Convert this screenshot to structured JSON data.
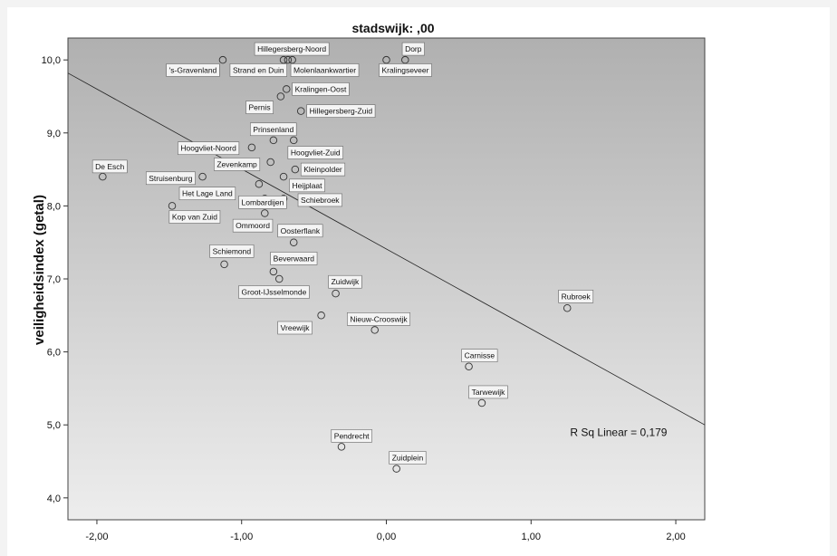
{
  "chart_data": {
    "type": "scatter",
    "title": "stadswijk: ,00",
    "xlabel": "",
    "ylabel": "veiligheidsindex (getal)",
    "xlim": [
      -2.2,
      2.2
    ],
    "ylim": [
      3.7,
      10.3
    ],
    "x_ticks": [
      "-2,00",
      "-1,00",
      "0,00",
      "1,00",
      "2,00"
    ],
    "x_tick_values": [
      -2,
      -1,
      0,
      1,
      2
    ],
    "y_ticks": [
      "4,0",
      "5,0",
      "6,0",
      "7,0",
      "8,0",
      "9,0",
      "10,0"
    ],
    "y_tick_values": [
      4,
      5,
      6,
      7,
      8,
      9,
      10
    ],
    "fit_line": {
      "x": [
        -2.2,
        2.2
      ],
      "y": [
        9.82,
        5.0
      ]
    },
    "annotation": "R Sq Linear = 0,179",
    "points": [
      {
        "label": "Hillegersberg-Noord",
        "x": -0.68,
        "y": 10.0,
        "lx": -0.91,
        "ly": 10.15
      },
      {
        "label": "Dorp",
        "x": 0.13,
        "y": 10.0,
        "lx": 0.11,
        "ly": 10.15
      },
      {
        "label": "'s-Gravenland",
        "x": -1.13,
        "y": 10.0,
        "lx": -1.52,
        "ly": 9.86
      },
      {
        "label": "Strand en Duin",
        "x": -0.71,
        "y": 10.0,
        "lx": -1.08,
        "ly": 9.86
      },
      {
        "label": "Molenlaankwartier",
        "x": -0.65,
        "y": 10.0,
        "lx": -0.66,
        "ly": 9.86
      },
      {
        "label": "Kralingseveer",
        "x": 0.0,
        "y": 10.0,
        "lx": -0.05,
        "ly": 9.86
      },
      {
        "label": "Kralingen-Oost",
        "x": -0.69,
        "y": 9.6,
        "lx": -0.65,
        "ly": 9.6
      },
      {
        "label": "Pernis",
        "x": -0.73,
        "y": 9.5,
        "lx": -0.97,
        "ly": 9.35
      },
      {
        "label": "Hillegersberg-Zuid",
        "x": -0.59,
        "y": 9.3,
        "lx": -0.55,
        "ly": 9.3
      },
      {
        "label": "Prinsenland",
        "x": -0.78,
        "y": 8.9,
        "lx": -0.94,
        "ly": 9.05
      },
      {
        "label": "Hoogvliet-Noord",
        "x": -0.93,
        "y": 8.8,
        "lx": -1.44,
        "ly": 8.79
      },
      {
        "label": "Hoogvliet-Zuid",
        "x": -0.64,
        "y": 8.9,
        "lx": -0.68,
        "ly": 8.73
      },
      {
        "label": "De Esch",
        "x": -1.96,
        "y": 8.4,
        "lx": -2.03,
        "ly": 8.54
      },
      {
        "label": "Zevenkamp",
        "x": -0.8,
        "y": 8.6,
        "lx": -1.19,
        "ly": 8.57
      },
      {
        "label": "Kleinpolder",
        "x": -0.63,
        "y": 8.5,
        "lx": -0.59,
        "ly": 8.5
      },
      {
        "label": "Struisenburg",
        "x": -1.27,
        "y": 8.4,
        "lx": -1.66,
        "ly": 8.38
      },
      {
        "label": "Heijplaat",
        "x": -0.71,
        "y": 8.4,
        "lx": -0.67,
        "ly": 8.28
      },
      {
        "label": "Het Lage Land",
        "x": -0.88,
        "y": 8.3,
        "lx": -1.43,
        "ly": 8.17
      },
      {
        "label": "Lombardijen",
        "x": -0.84,
        "y": 8.1,
        "lx": -1.02,
        "ly": 8.05
      },
      {
        "label": "Schiebroek",
        "x": -0.71,
        "y": 8.1,
        "lx": -0.61,
        "ly": 8.08
      },
      {
        "label": "Kop van Zuid",
        "x": -1.48,
        "y": 8.0,
        "lx": -1.5,
        "ly": 7.85
      },
      {
        "label": "Ommoord",
        "x": -0.84,
        "y": 7.9,
        "lx": -1.06,
        "ly": 7.73
      },
      {
        "label": "Oosterflank",
        "x": -0.64,
        "y": 7.5,
        "lx": -0.75,
        "ly": 7.66
      },
      {
        "label": "Schiemond",
        "x": -1.12,
        "y": 7.2,
        "lx": -1.22,
        "ly": 7.38
      },
      {
        "label": "Beverwaard",
        "x": -0.78,
        "y": 7.1,
        "lx": -0.8,
        "ly": 7.28
      },
      {
        "label": "Zuidwijk",
        "x": -0.35,
        "y": 6.8,
        "lx": -0.4,
        "ly": 6.96
      },
      {
        "label": "Groot-IJsselmonde",
        "x": -0.74,
        "y": 7.0,
        "lx": -1.02,
        "ly": 6.82
      },
      {
        "label": "Rubroek",
        "x": 1.25,
        "y": 6.6,
        "lx": 1.19,
        "ly": 6.76
      },
      {
        "label": "Vreewijk",
        "x": -0.45,
        "y": 6.5,
        "lx": -0.75,
        "ly": 6.33
      },
      {
        "label": "Nieuw-Crooswijk",
        "x": -0.08,
        "y": 6.3,
        "lx": -0.27,
        "ly": 6.45
      },
      {
        "label": "Carnisse",
        "x": 0.57,
        "y": 5.8,
        "lx": 0.52,
        "ly": 5.95
      },
      {
        "label": "Tarwewijk",
        "x": 0.66,
        "y": 5.3,
        "lx": 0.57,
        "ly": 5.45
      },
      {
        "label": "Pendrecht",
        "x": -0.31,
        "y": 4.7,
        "lx": -0.38,
        "ly": 4.85
      },
      {
        "label": "Zuidplein",
        "x": 0.07,
        "y": 4.4,
        "lx": 0.02,
        "ly": 4.55
      }
    ]
  }
}
